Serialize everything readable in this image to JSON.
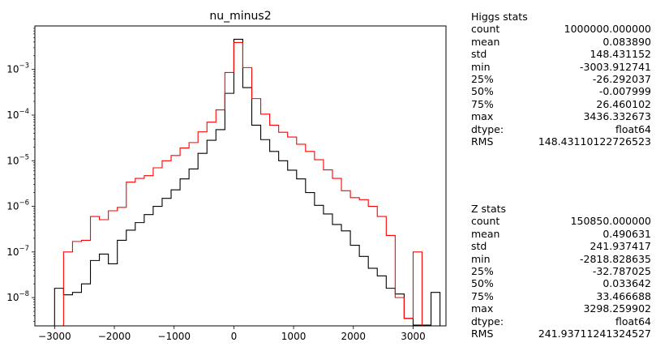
{
  "chart_data": {
    "type": "histogram-step",
    "title": "nu_minus2",
    "xlabel": "",
    "ylabel": "",
    "xlim": [
      -3330,
      3550
    ],
    "ylim": [
      2.4e-09,
      0.009
    ],
    "yscale": "log",
    "grid": false,
    "bin_width": 150,
    "x_ticks": [
      -3000,
      -2000,
      -1000,
      0,
      1000,
      2000,
      3000
    ],
    "x_tick_labels": [
      "−3000",
      "−2000",
      "−1000",
      "0",
      "1000",
      "2000",
      "3000"
    ],
    "y_ticks": [
      1e-08,
      1e-07,
      1e-06,
      1e-05,
      0.0001,
      0.001
    ],
    "series": [
      {
        "color": "#000000",
        "bin_starts": [
          -3000,
          -2850,
          -2700,
          -2550,
          -2400,
          -2250,
          -2100,
          -1950,
          -1800,
          -1650,
          -1500,
          -1350,
          -1200,
          -1050,
          -900,
          -750,
          -600,
          -450,
          -300,
          -150,
          0,
          150,
          300,
          450,
          600,
          750,
          900,
          1050,
          1200,
          1350,
          1500,
          1650,
          1800,
          1950,
          2100,
          2250,
          2400,
          2550,
          2700,
          2850,
          3000,
          3150,
          3300
        ],
        "values": [
          1.6e-08,
          1.15e-08,
          1.3e-08,
          2e-08,
          6.5e-08,
          9e-08,
          5.5e-08,
          1.8e-07,
          3e-07,
          4.4e-07,
          6.6e-07,
          1e-06,
          1.5e-06,
          2.3e-06,
          4e-06,
          6.6e-06,
          1.45e-05,
          2.8e-05,
          4.8e-05,
          0.0003,
          0.0046,
          0.0004,
          6e-05,
          2.9e-05,
          1.6e-05,
          1e-05,
          6.2e-06,
          4e-06,
          2e-06,
          1.05e-06,
          6.8e-07,
          4e-07,
          2.9e-07,
          1.4e-07,
          8e-08,
          4.4e-08,
          3e-08,
          1.6e-08,
          1.2e-08,
          3.5e-09,
          2.5e-09,
          2.5e-09,
          1.3e-08
        ]
      },
      {
        "color": "#ff0000",
        "bin_starts": [
          -2850,
          -2700,
          -2550,
          -2400,
          -2250,
          -2100,
          -1950,
          -1800,
          -1650,
          -1500,
          -1350,
          -1200,
          -1050,
          -900,
          -750,
          -600,
          -450,
          -300,
          -150,
          0,
          150,
          300,
          450,
          600,
          750,
          900,
          1050,
          1200,
          1350,
          1500,
          1650,
          1800,
          1950,
          2100,
          2250,
          2400,
          2550,
          2700,
          2850,
          3000,
          3150
        ],
        "values": [
          1e-07,
          1.7e-07,
          1.8e-07,
          6e-07,
          5.1e-07,
          8e-07,
          9.5e-07,
          3.4e-06,
          4.1e-06,
          4.7e-06,
          7e-06,
          1e-05,
          1.3e-05,
          1.9e-05,
          2.5e-05,
          4.3e-05,
          7e-05,
          0.00013,
          0.00086,
          0.0039,
          0.0011,
          0.00023,
          0.000105,
          6e-05,
          4.2e-05,
          3.3e-05,
          2.3e-05,
          1.6e-05,
          1.05e-05,
          6.3e-06,
          4.1e-06,
          2.2e-06,
          1.55e-06,
          1.4e-06,
          1e-06,
          6e-07,
          2.3e-07,
          1e-08,
          3.5e-09,
          1e-07,
          2e-09
        ]
      }
    ]
  },
  "stats_panels": [
    {
      "title": "Higgs stats",
      "rows": [
        {
          "label": "count",
          "value": "1000000.000000"
        },
        {
          "label": "mean",
          "value": "0.083890"
        },
        {
          "label": "std",
          "value": "148.431152"
        },
        {
          "label": "min",
          "value": "-3003.912741"
        },
        {
          "label": "25%",
          "value": "-26.292037"
        },
        {
          "label": "50%",
          "value": "-0.007999"
        },
        {
          "label": "75%",
          "value": "26.460102"
        },
        {
          "label": "max",
          "value": "3436.332673"
        },
        {
          "label": "dtype:",
          "value": "float64"
        },
        {
          "label": "RMS",
          "value": "148.43110122726523"
        }
      ]
    },
    {
      "title": "Z stats",
      "rows": [
        {
          "label": "count",
          "value": "150850.000000"
        },
        {
          "label": "mean",
          "value": "0.490631"
        },
        {
          "label": "std",
          "value": "241.937417"
        },
        {
          "label": "min",
          "value": "-2818.828635"
        },
        {
          "label": "25%",
          "value": "-32.787025"
        },
        {
          "label": "50%",
          "value": "0.033642"
        },
        {
          "label": "75%",
          "value": "33.466688"
        },
        {
          "label": "max",
          "value": "3298.259902"
        },
        {
          "label": "dtype:",
          "value": "float64"
        },
        {
          "label": "RMS",
          "value": "241.93711241324527"
        }
      ]
    }
  ]
}
